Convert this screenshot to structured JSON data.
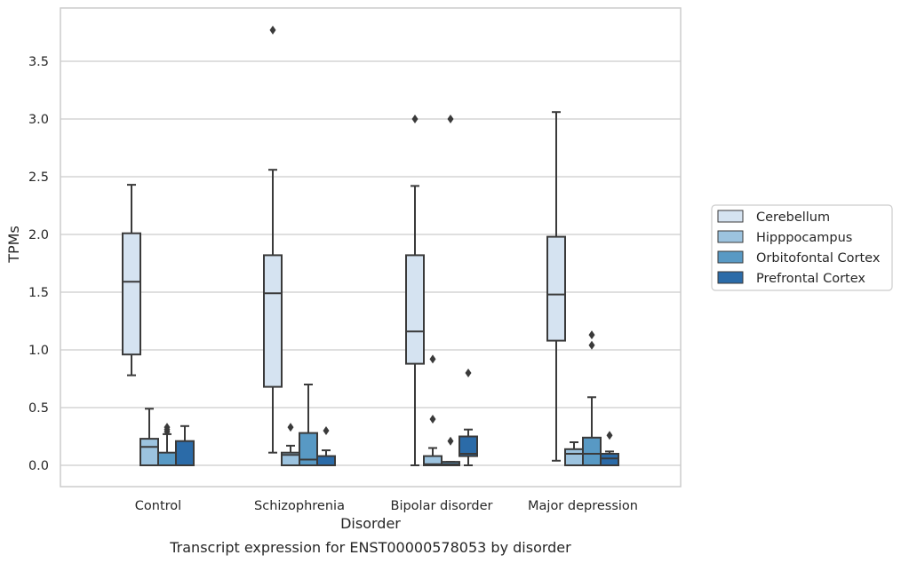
{
  "caption": "Transcript expression for ENST00000578053 by disorder",
  "chart_data": {
    "type": "box",
    "xlabel": "Disorder",
    "ylabel": "TPMs",
    "ylim": [
      -0.18,
      3.95
    ],
    "yticks": [
      "0.0",
      "0.5",
      "1.0",
      "1.5",
      "2.0",
      "2.5",
      "3.0",
      "3.5"
    ],
    "grid": "horizontal",
    "legend_position": "right",
    "categories": [
      "Control",
      "Schizophrenia",
      "Bipolar disorder",
      "Major depression"
    ],
    "series": [
      {
        "name": "Cerebellum",
        "color": "#d5e3f1",
        "boxes": [
          {
            "whislo": 0.78,
            "q1": 0.96,
            "med": 1.59,
            "q3": 2.01,
            "whishi": 2.43,
            "fliers": []
          },
          {
            "whislo": 0.11,
            "q1": 0.68,
            "med": 1.49,
            "q3": 1.82,
            "whishi": 2.56,
            "fliers": [
              3.77
            ]
          },
          {
            "whislo": 0.0,
            "q1": 0.88,
            "med": 1.16,
            "q3": 1.82,
            "whishi": 2.42,
            "fliers": [
              3.0
            ]
          },
          {
            "whislo": 0.04,
            "q1": 1.08,
            "med": 1.48,
            "q3": 1.98,
            "whishi": 3.06,
            "fliers": []
          }
        ]
      },
      {
        "name": "Hipppocampus",
        "color": "#9cc3df",
        "boxes": [
          {
            "whislo": 0.0,
            "q1": 0.0,
            "med": 0.16,
            "q3": 0.23,
            "whishi": 0.49,
            "fliers": []
          },
          {
            "whislo": 0.0,
            "q1": 0.0,
            "med": 0.09,
            "q3": 0.11,
            "whishi": 0.17,
            "fliers": [
              0.33
            ]
          },
          {
            "whislo": 0.0,
            "q1": 0.0,
            "med": 0.01,
            "q3": 0.08,
            "whishi": 0.15,
            "fliers": [
              0.4,
              0.92
            ]
          },
          {
            "whislo": 0.0,
            "q1": 0.0,
            "med": 0.1,
            "q3": 0.14,
            "whishi": 0.2,
            "fliers": []
          }
        ]
      },
      {
        "name": "Orbitofontal Cortex",
        "color": "#5899c4",
        "boxes": [
          {
            "whislo": 0.0,
            "q1": 0.0,
            "med": 0.0,
            "q3": 0.11,
            "whishi": 0.27,
            "fliers": [
              0.29,
              0.31,
              0.33
            ]
          },
          {
            "whislo": 0.0,
            "q1": 0.0,
            "med": 0.05,
            "q3": 0.28,
            "whishi": 0.7,
            "fliers": []
          },
          {
            "whislo": 0.0,
            "q1": 0.0,
            "med": 0.01,
            "q3": 0.03,
            "whishi": 0.03,
            "fliers": [
              0.21,
              3.0
            ]
          },
          {
            "whislo": 0.0,
            "q1": 0.0,
            "med": 0.1,
            "q3": 0.24,
            "whishi": 0.59,
            "fliers": [
              1.04,
              1.13
            ]
          }
        ]
      },
      {
        "name": "Prefrontal Cortex",
        "color": "#2b6ba8",
        "boxes": [
          {
            "whislo": 0.0,
            "q1": 0.0,
            "med": 0.0,
            "q3": 0.21,
            "whishi": 0.34,
            "fliers": []
          },
          {
            "whislo": 0.0,
            "q1": 0.0,
            "med": 0.0,
            "q3": 0.08,
            "whishi": 0.13,
            "fliers": [
              0.3
            ]
          },
          {
            "whislo": 0.0,
            "q1": 0.08,
            "med": 0.1,
            "q3": 0.25,
            "whishi": 0.31,
            "fliers": [
              0.8
            ]
          },
          {
            "whislo": 0.0,
            "q1": 0.0,
            "med": 0.06,
            "q3": 0.1,
            "whishi": 0.12,
            "fliers": [
              0.26
            ]
          }
        ]
      }
    ]
  }
}
